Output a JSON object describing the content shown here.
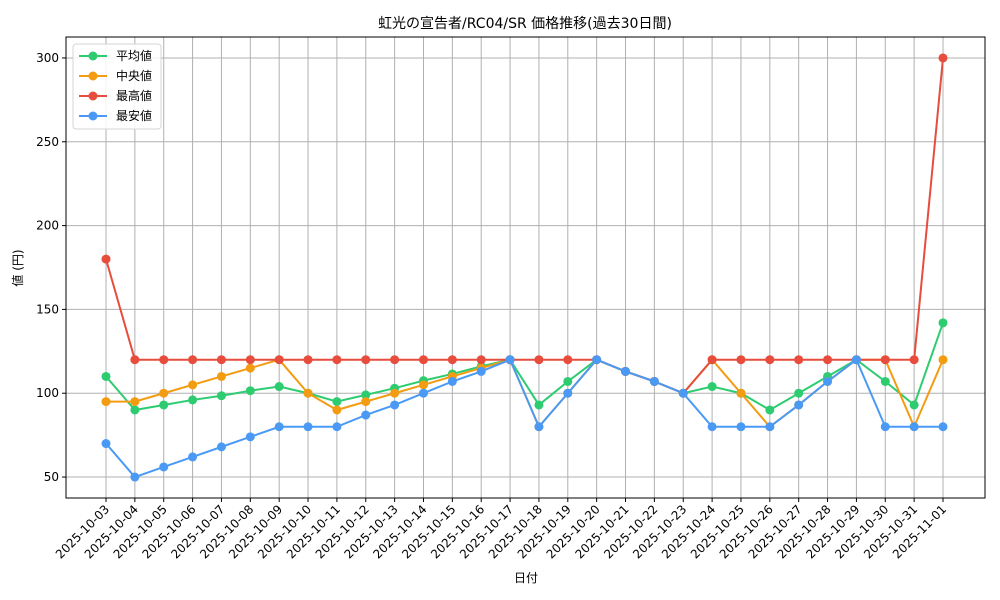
{
  "chart_data": {
    "type": "line",
    "title": "虹光の宣告者/RC04/SR 価格推移(過去30日間)",
    "xlabel": "日付",
    "ylabel": "値 (円)",
    "ylim": [
      37.5,
      312.5
    ],
    "yticks": [
      50,
      100,
      150,
      200,
      250,
      300
    ],
    "grid": true,
    "legend_position": "upper left",
    "x": [
      "2025-10-03",
      "2025-10-04",
      "2025-10-05",
      "2025-10-06",
      "2025-10-07",
      "2025-10-08",
      "2025-10-09",
      "2025-10-10",
      "2025-10-11",
      "2025-10-12",
      "2025-10-13",
      "2025-10-14",
      "2025-10-15",
      "2025-10-16",
      "2025-10-17",
      "2025-10-18",
      "2025-10-19",
      "2025-10-20",
      "2025-10-21",
      "2025-10-22",
      "2025-10-23",
      "2025-10-24",
      "2025-10-25",
      "2025-10-26",
      "2025-10-27",
      "2025-10-28",
      "2025-10-29",
      "2025-10-30",
      "2025-10-31",
      "2025-11-01"
    ],
    "series": [
      {
        "name": "平均値",
        "color": "#2ecc71",
        "values": [
          110,
          90,
          93,
          96,
          98.5,
          101.5,
          104,
          100,
          95,
          99,
          103,
          107.5,
          111.5,
          116,
          120,
          93,
          107,
          120,
          113,
          107,
          100,
          104,
          100,
          90,
          100,
          110,
          120,
          107,
          93,
          142
        ]
      },
      {
        "name": "中央値",
        "color": "#f39c12",
        "values": [
          95,
          95,
          100,
          105,
          110,
          115,
          120,
          100,
          90,
          95,
          100,
          105,
          110,
          115,
          120,
          80,
          100,
          120,
          113,
          107,
          100,
          120,
          100,
          80,
          93,
          107,
          120,
          120,
          80,
          120
        ]
      },
      {
        "name": "最高値",
        "color": "#e74c3c",
        "values": [
          180,
          120,
          120,
          120,
          120,
          120,
          120,
          120,
          120,
          120,
          120,
          120,
          120,
          120,
          120,
          120,
          120,
          120,
          113,
          107,
          100,
          120,
          120,
          120,
          120,
          120,
          120,
          120,
          120,
          300
        ]
      },
      {
        "name": "最安値",
        "color": "#4a9af5",
        "values": [
          70,
          50,
          56,
          62,
          68,
          74,
          80,
          80,
          80,
          87,
          93,
          100,
          107,
          113,
          120,
          80,
          100,
          120,
          113,
          107,
          100,
          80,
          80,
          80,
          93,
          107,
          120,
          80,
          80,
          80
        ]
      }
    ]
  }
}
